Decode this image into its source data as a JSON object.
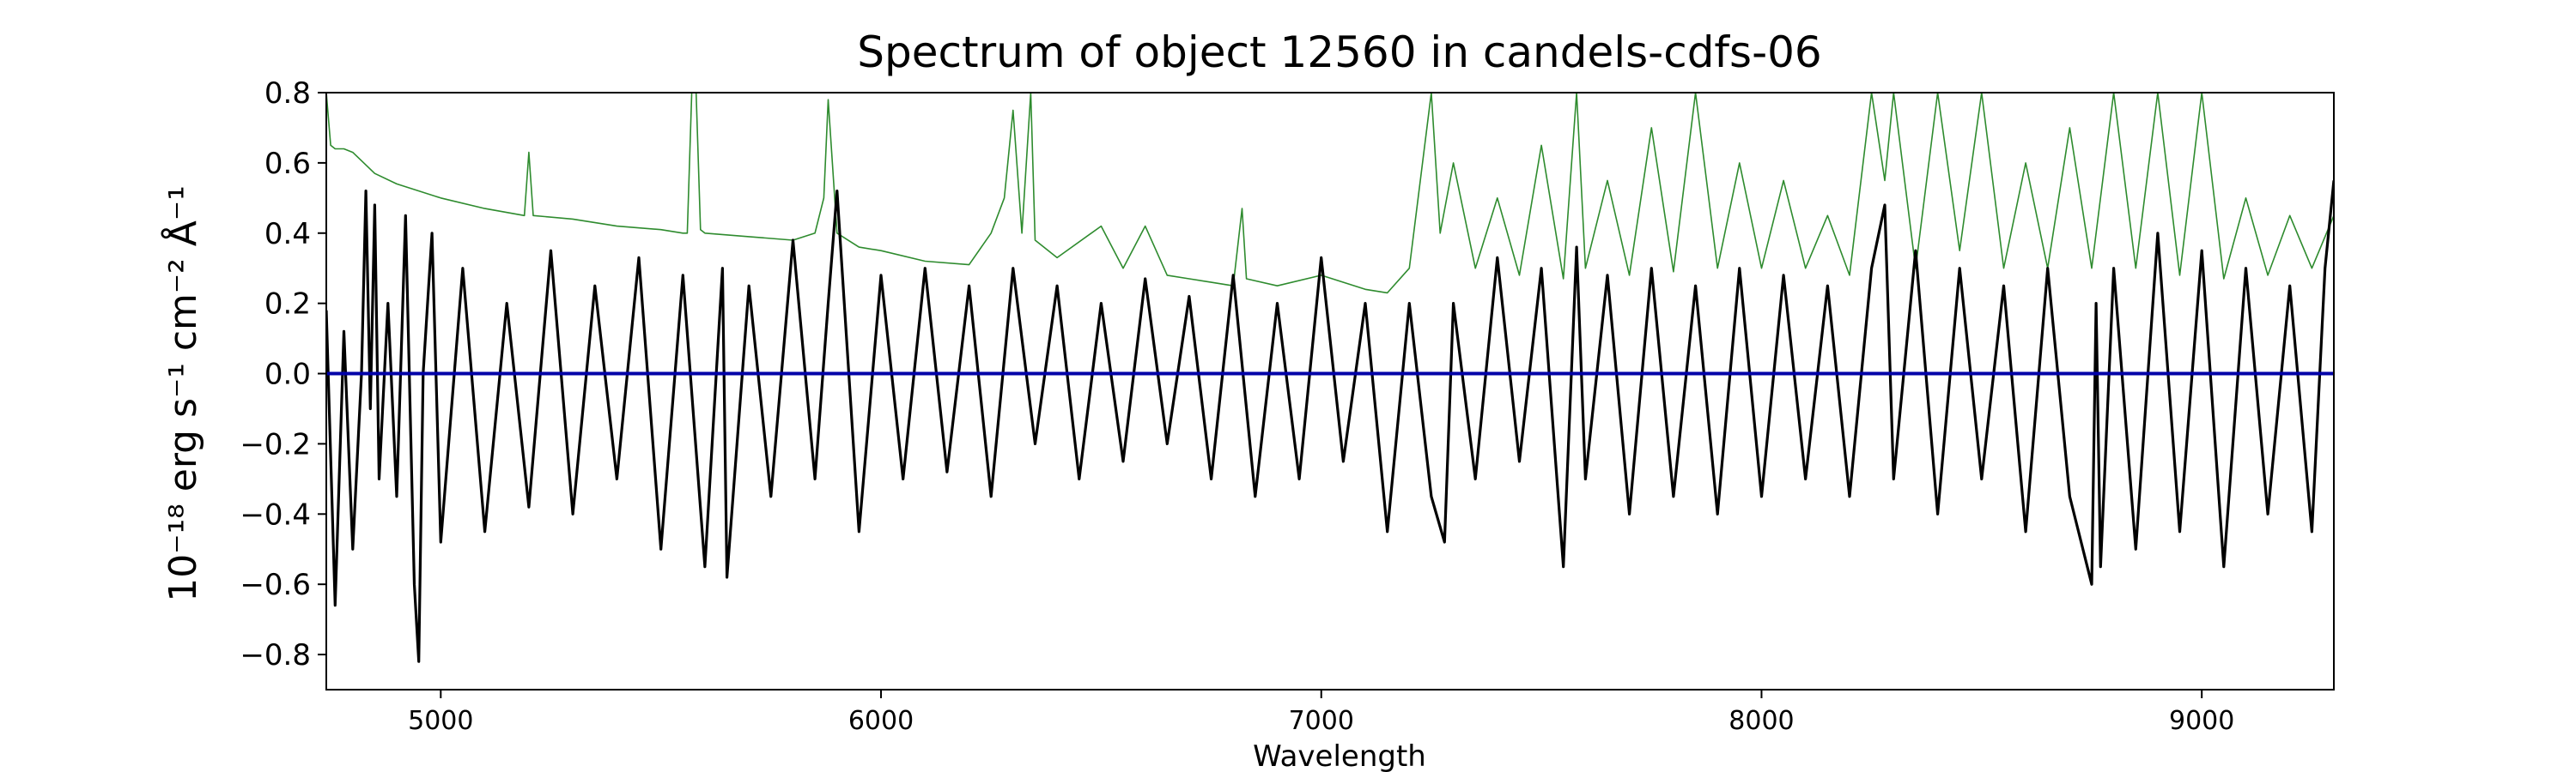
{
  "chart_data": {
    "type": "line",
    "title": "Spectrum of object 12560 in candels-cdfs-06",
    "xlabel": "Wavelength",
    "ylabel": "10⁻¹⁸ erg s⁻¹ cm⁻² Å⁻¹",
    "xlim": [
      4740,
      9300
    ],
    "ylim": [
      -0.9,
      0.8
    ],
    "xticks": [
      5000,
      6000,
      7000,
      8000,
      9000
    ],
    "yticks": [
      -0.8,
      -0.6,
      -0.4,
      -0.2,
      0.0,
      0.2,
      0.4,
      0.6,
      0.8
    ],
    "grid": false,
    "colors": {
      "flux": "#000000",
      "noise": "#2e8b2e",
      "zero": "#0000a8"
    },
    "series": [
      {
        "key": "flux",
        "x": [
          4740,
          4760,
          4780,
          4800,
          4820,
          4830,
          4840,
          4850,
          4860,
          4880,
          4900,
          4920,
          4940,
          4950,
          4960,
          4980,
          5000,
          5050,
          5100,
          5150,
          5200,
          5250,
          5300,
          5350,
          5400,
          5450,
          5500,
          5550,
          5600,
          5640,
          5650,
          5700,
          5750,
          5800,
          5850,
          5880,
          5900,
          5950,
          6000,
          6050,
          6100,
          6150,
          6200,
          6250,
          6300,
          6350,
          6400,
          6450,
          6500,
          6550,
          6600,
          6650,
          6700,
          6750,
          6800,
          6850,
          6900,
          6950,
          7000,
          7050,
          7100,
          7150,
          7200,
          7250,
          7280,
          7300,
          7350,
          7400,
          7450,
          7500,
          7550,
          7580,
          7600,
          7650,
          7700,
          7750,
          7800,
          7850,
          7900,
          7950,
          8000,
          8050,
          8100,
          8150,
          8200,
          8250,
          8280,
          8300,
          8350,
          8400,
          8450,
          8500,
          8550,
          8600,
          8650,
          8700,
          8750,
          8760,
          8770,
          8800,
          8850,
          8900,
          8950,
          9000,
          9050,
          9100,
          9150,
          9200,
          9250,
          9280,
          9300
        ],
        "y": [
          0.18,
          -0.66,
          0.12,
          -0.5,
          0.0,
          0.52,
          -0.1,
          0.48,
          -0.3,
          0.2,
          -0.35,
          0.45,
          -0.6,
          -0.82,
          0.0,
          0.4,
          -0.48,
          0.3,
          -0.45,
          0.2,
          -0.38,
          0.35,
          -0.4,
          0.25,
          -0.3,
          0.33,
          -0.5,
          0.28,
          -0.55,
          0.3,
          -0.58,
          0.25,
          -0.35,
          0.38,
          -0.3,
          0.2,
          0.52,
          -0.45,
          0.28,
          -0.3,
          0.3,
          -0.28,
          0.25,
          -0.35,
          0.3,
          -0.2,
          0.25,
          -0.3,
          0.2,
          -0.25,
          0.27,
          -0.2,
          0.22,
          -0.3,
          0.28,
          -0.35,
          0.2,
          -0.3,
          0.33,
          -0.25,
          0.2,
          -0.45,
          0.2,
          -0.35,
          -0.48,
          0.2,
          -0.3,
          0.33,
          -0.25,
          0.3,
          -0.55,
          0.36,
          -0.3,
          0.28,
          -0.4,
          0.3,
          -0.35,
          0.25,
          -0.4,
          0.3,
          -0.35,
          0.28,
          -0.3,
          0.25,
          -0.35,
          0.3,
          0.48,
          -0.3,
          0.35,
          -0.4,
          0.3,
          -0.3,
          0.25,
          -0.45,
          0.3,
          -0.35,
          -0.6,
          0.2,
          -0.55,
          0.3,
          -0.5,
          0.4,
          -0.45,
          0.35,
          -0.55,
          0.3,
          -0.4,
          0.25,
          -0.45,
          0.3,
          0.55
        ]
      },
      {
        "key": "noise",
        "x": [
          4740,
          4750,
          4760,
          4780,
          4800,
          4850,
          4900,
          5000,
          5100,
          5190,
          5200,
          5210,
          5300,
          5400,
          5500,
          5550,
          5560,
          5570,
          5580,
          5590,
          5600,
          5700,
          5800,
          5850,
          5870,
          5880,
          5900,
          5950,
          6000,
          6100,
          6200,
          6250,
          6280,
          6300,
          6320,
          6340,
          6350,
          6400,
          6500,
          6550,
          6600,
          6650,
          6700,
          6750,
          6800,
          6820,
          6830,
          6900,
          7000,
          7100,
          7150,
          7200,
          7250,
          7270,
          7300,
          7350,
          7400,
          7450,
          7500,
          7550,
          7580,
          7600,
          7650,
          7700,
          7750,
          7800,
          7850,
          7900,
          7950,
          8000,
          8050,
          8100,
          8150,
          8200,
          8250,
          8280,
          8300,
          8350,
          8400,
          8450,
          8500,
          8550,
          8600,
          8650,
          8700,
          8750,
          8800,
          8850,
          8900,
          8950,
          9000,
          9050,
          9100,
          9150,
          9200,
          9250,
          9300
        ],
        "y": [
          0.8,
          0.65,
          0.64,
          0.64,
          0.63,
          0.57,
          0.54,
          0.5,
          0.47,
          0.45,
          0.63,
          0.45,
          0.44,
          0.42,
          0.41,
          0.4,
          0.4,
          0.8,
          0.8,
          0.41,
          0.4,
          0.39,
          0.38,
          0.4,
          0.5,
          0.78,
          0.4,
          0.36,
          0.35,
          0.32,
          0.31,
          0.4,
          0.5,
          0.75,
          0.4,
          0.8,
          0.38,
          0.33,
          0.42,
          0.3,
          0.42,
          0.28,
          0.27,
          0.26,
          0.25,
          0.47,
          0.27,
          0.25,
          0.28,
          0.24,
          0.23,
          0.3,
          0.8,
          0.4,
          0.6,
          0.3,
          0.5,
          0.28,
          0.65,
          0.27,
          0.8,
          0.3,
          0.55,
          0.28,
          0.7,
          0.29,
          0.8,
          0.3,
          0.6,
          0.3,
          0.55,
          0.3,
          0.45,
          0.28,
          0.8,
          0.55,
          0.8,
          0.3,
          0.8,
          0.35,
          0.8,
          0.3,
          0.6,
          0.3,
          0.7,
          0.3,
          0.8,
          0.3,
          0.8,
          0.28,
          0.8,
          0.27,
          0.5,
          0.28,
          0.45,
          0.3,
          0.45
        ]
      },
      {
        "key": "zero",
        "x": [
          4740,
          9300
        ],
        "y": [
          0.0,
          0.0
        ]
      }
    ]
  }
}
